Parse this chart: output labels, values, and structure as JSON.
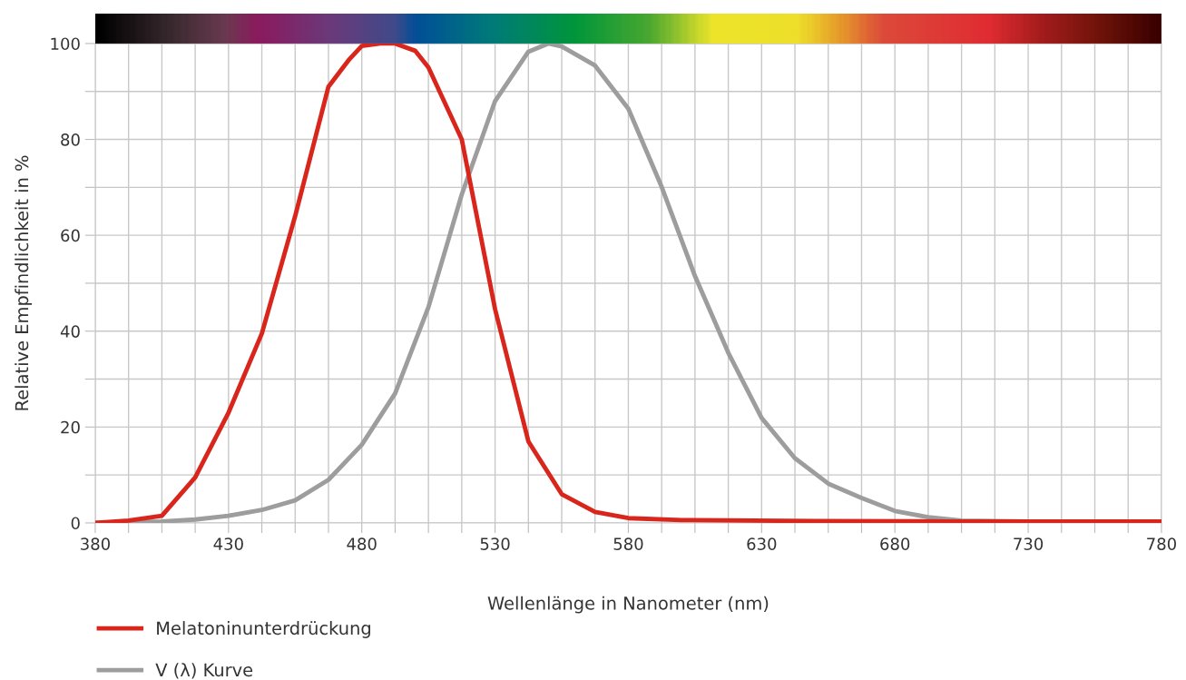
{
  "chart_data": {
    "type": "line",
    "xlabel": "Wellenlänge in Nanometer (nm)",
    "ylabel": "Relative Empfindlichkeit in %",
    "xlim": [
      380,
      780
    ],
    "ylim": [
      0,
      100
    ],
    "xticks": [
      380,
      {
        "value": 392.5,
        "label": null
      },
      {
        "value": 405,
        "label": null
      },
      {
        "value": 417.5,
        "label": null
      },
      430,
      {
        "value": 442.5,
        "label": null
      },
      {
        "value": 455,
        "label": null
      },
      {
        "value": 467.5,
        "label": null
      },
      480,
      {
        "value": 492.5,
        "label": null
      },
      {
        "value": 505,
        "label": null
      },
      {
        "value": 517.5,
        "label": null
      },
      530,
      {
        "value": 542.5,
        "label": null
      },
      {
        "value": 555,
        "label": null
      },
      {
        "value": 567.5,
        "label": null
      },
      580,
      {
        "value": 592.5,
        "label": null
      },
      {
        "value": 605,
        "label": null
      },
      {
        "value": 617.5,
        "label": null
      },
      630,
      {
        "value": 642.5,
        "label": null
      },
      {
        "value": 655,
        "label": null
      },
      {
        "value": 667.5,
        "label": null
      },
      680,
      {
        "value": 692.5,
        "label": null
      },
      {
        "value": 705,
        "label": null
      },
      {
        "value": 717.5,
        "label": null
      },
      730,
      {
        "value": 742.5,
        "label": null
      },
      {
        "value": 755,
        "label": null
      },
      {
        "value": 767.5,
        "label": null
      },
      780
    ],
    "yticks": [
      0,
      {
        "value": 10,
        "label": null
      },
      20,
      {
        "value": 30,
        "label": null
      },
      40,
      {
        "value": 50,
        "label": null
      },
      60,
      {
        "value": 70,
        "label": null
      },
      80,
      {
        "value": 90,
        "label": null
      },
      100
    ],
    "grid": true,
    "legend": "bottom left",
    "marker": "none",
    "line_style": "solid",
    "series": [
      {
        "name": "Melatoninunterdrückung",
        "color": "#d9261c",
        "x": [
          380,
          392.5,
          405,
          417.5,
          430,
          442.5,
          455,
          467.5,
          475,
          480,
          487,
          492.5,
          500,
          505,
          517.5,
          530,
          542.5,
          555,
          567.5,
          580,
          600,
          650,
          700,
          780
        ],
        "values": [
          0,
          0.5,
          1.5,
          9.5,
          23,
          39.5,
          64,
          91,
          96.5,
          99.5,
          100,
          100,
          98.5,
          95,
          80,
          44.6,
          17,
          6,
          2.3,
          1,
          0.6,
          0.4,
          0.3,
          0.3
        ]
      },
      {
        "name": "V (λ) Kurve",
        "color": "#9d9d9d",
        "x": [
          380,
          405,
          417.5,
          430,
          442.5,
          455,
          467.5,
          480,
          492.5,
          505,
          517.5,
          530,
          542.5,
          550,
          555,
          567.5,
          580,
          592.5,
          605,
          617.5,
          630,
          642.5,
          655,
          667.5,
          680,
          692.5,
          705,
          730,
          780
        ],
        "values": [
          0,
          0.3,
          0.7,
          1.5,
          2.7,
          4.7,
          9,
          16.3,
          27,
          45,
          68.5,
          88,
          98.3,
          100,
          99.4,
          95.4,
          86.4,
          70.1,
          51.5,
          35.5,
          21.9,
          13.5,
          8.2,
          5.2,
          2.5,
          1.2,
          0.5,
          0.3,
          0.3
        ]
      }
    ]
  }
}
